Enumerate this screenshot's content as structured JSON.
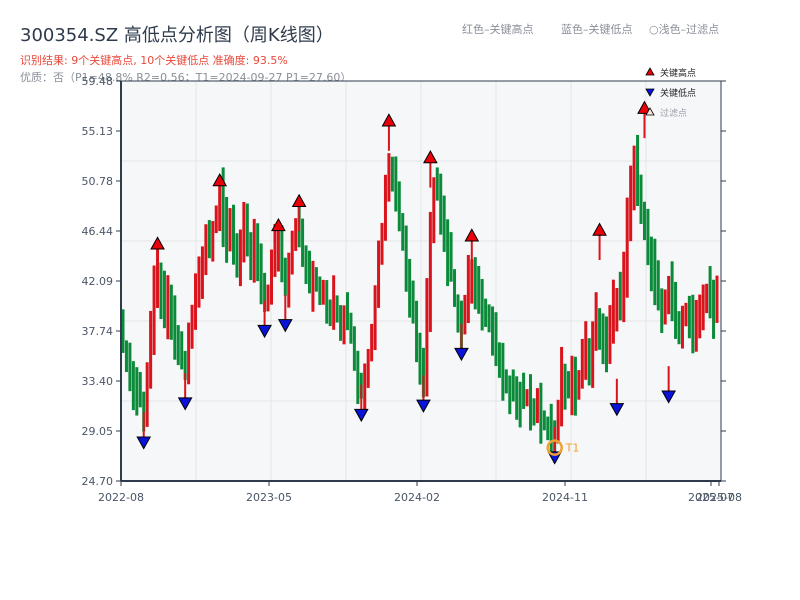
{
  "header": {
    "title": "300354.SZ 高低点分析图（周K线图）",
    "result_line": "识别结果: 9个关键高点, 10个关键低点   准确度: 93.5%",
    "quality_line": "优质：否（P1=48.8%  R2=0.56；T1=2024-09-27 P1=27.60）",
    "legend_top": {
      "red": "红色–关键高点",
      "blue": "蓝色–关键低点",
      "light": "○浅色–过滤点"
    }
  },
  "legend": {
    "items": [
      {
        "label": "关键高点",
        "symbol": "triangle-up",
        "color": "#e8000b"
      },
      {
        "label": "关键低点",
        "symbol": "triangle-down",
        "color": "#0a14d8"
      },
      {
        "label": "过滤点",
        "symbol": "triangle-up-outline",
        "color": "#f5c6c0"
      }
    ]
  },
  "colors": {
    "up": "#d9141c",
    "down": "#0b8a3a",
    "high_marker": "#e8000b",
    "low_marker": "#0a14d8",
    "t1_ring": "#f0a030",
    "plot_bg": "#f6f7f9",
    "grid": "#e2e4e8",
    "axis": "#2f3b4c"
  },
  "chart_data": {
    "type": "candlestick",
    "title": "300354.SZ 高低点分析图（周K线图）",
    "xlabel": "",
    "ylabel": "",
    "ylim": [
      24.7,
      59.48
    ],
    "yticks": [
      "59.48",
      "55.13",
      "50.78",
      "46.44",
      "42.09",
      "37.74",
      "33.40",
      "29.05",
      "24.70"
    ],
    "xticks": [
      "2022-08",
      "2023-05",
      "2024-02",
      "2024-11",
      "2025-07",
      "2025-08"
    ],
    "grid": true,
    "legend_position": "top-right",
    "key_highs": [
      {
        "idx": 10,
        "price": 44.8
      },
      {
        "idx": 28,
        "price": 50.3
      },
      {
        "idx": 45,
        "price": 46.4
      },
      {
        "idx": 51,
        "price": 48.5
      },
      {
        "idx": 77,
        "price": 55.5
      },
      {
        "idx": 89,
        "price": 52.3
      },
      {
        "idx": 101,
        "price": 45.5
      },
      {
        "idx": 138,
        "price": 46.0
      },
      {
        "idx": 151,
        "price": 56.6
      }
    ],
    "key_lows": [
      {
        "idx": 6,
        "price": 28.6
      },
      {
        "idx": 18,
        "price": 32.0
      },
      {
        "idx": 41,
        "price": 38.3
      },
      {
        "idx": 47,
        "price": 38.8
      },
      {
        "idx": 69,
        "price": 31.0
      },
      {
        "idx": 87,
        "price": 31.8
      },
      {
        "idx": 98,
        "price": 36.3
      },
      {
        "idx": 125,
        "price": 27.3
      },
      {
        "idx": 143,
        "price": 31.5
      },
      {
        "idx": 158,
        "price": 32.6
      }
    ],
    "annotation": {
      "label": "T1",
      "date": "2024-09-27",
      "price": 27.6,
      "idx": 125
    },
    "closes": [
      36.5,
      35.2,
      34.0,
      33.3,
      32.5,
      31.8,
      31.5,
      34.0,
      38.0,
      41.0,
      43.0,
      40.5,
      39.0,
      40.5,
      38.5,
      37.0,
      36.0,
      35.0,
      34.5,
      36.5,
      38.5,
      41.0,
      43.0,
      44.5,
      46.0,
      45.0,
      47.0,
      48.0,
      49.5,
      47.5,
      46.0,
      47.5,
      45.5,
      44.0,
      45.0,
      46.5,
      45.0,
      44.0,
      45.5,
      43.0,
      41.5,
      40.0,
      41.0,
      43.0,
      45.0,
      45.5,
      43.5,
      42.0,
      44.0,
      45.5,
      47.0,
      46.0,
      44.0,
      42.5,
      41.5,
      42.5,
      41.5,
      40.5,
      41.5,
      40.0,
      39.0,
      40.5,
      39.5,
      38.0,
      39.5,
      38.5,
      37.0,
      35.0,
      33.0,
      32.5,
      33.5,
      35.5,
      38.0,
      41.0,
      44.0,
      46.5,
      49.5,
      52.5,
      51.0,
      49.5,
      47.5,
      46.0,
      43.5,
      41.0,
      39.0,
      36.5,
      35.0,
      34.0,
      40.0,
      46.0,
      50.5,
      49.5,
      47.5,
      45.5,
      44.0,
      42.5,
      40.5,
      39.0,
      38.5,
      40.0,
      42.0,
      43.5,
      42.0,
      40.0,
      39.5,
      38.5,
      38.0,
      37.0,
      36.0,
      35.0,
      34.0,
      33.5,
      33.0,
      32.5,
      32.0,
      31.8,
      31.5,
      31.5,
      31.0,
      30.5,
      30.8,
      30.3,
      30.0,
      29.5,
      29.0,
      28.3,
      31.0,
      34.0,
      33.0,
      32.5,
      33.5,
      32.5,
      34.0,
      35.5,
      36.5,
      35.0,
      36.5,
      39.0,
      38.0,
      37.0,
      36.5,
      38.0,
      40.0,
      41.0,
      39.0,
      42.5,
      47.0,
      50.5,
      52.5,
      51.0,
      48.5,
      46.5,
      44.5,
      43.5,
      41.5,
      40.0,
      39.0,
      40.5,
      41.5,
      40.5,
      39.0,
      38.0,
      38.5,
      39.5,
      39.0,
      38.0,
      38.5,
      39.5,
      40.0,
      41.5,
      40.0,
      39.5,
      40.5
    ]
  }
}
